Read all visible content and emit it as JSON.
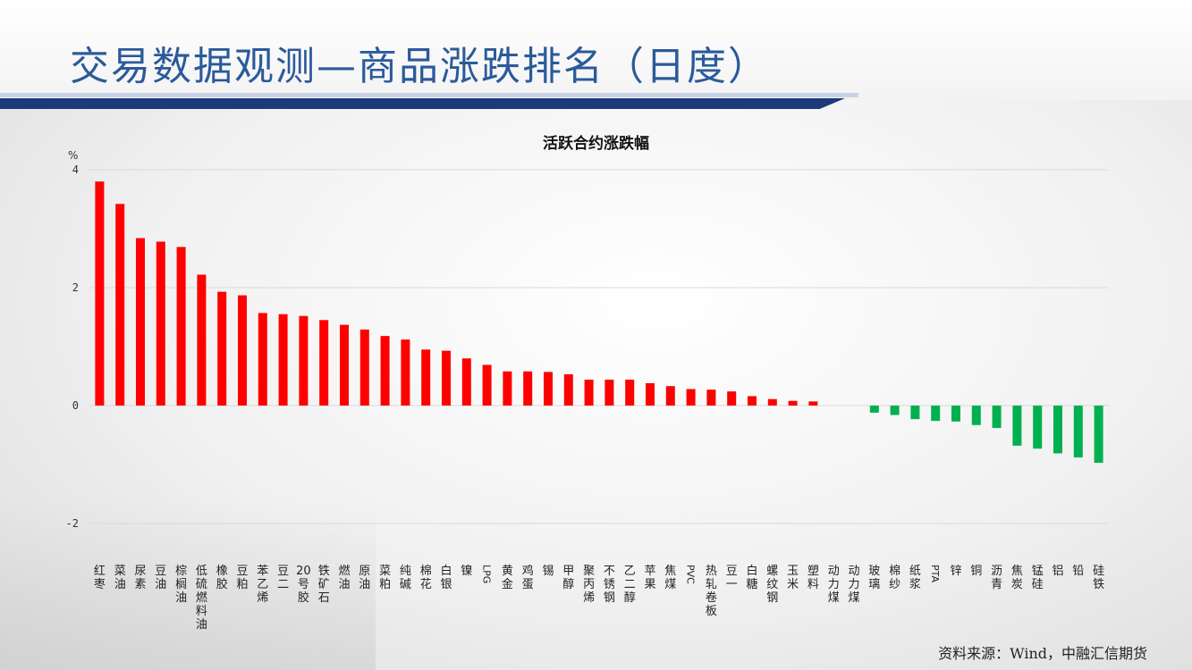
{
  "header": {
    "title": "交易数据观测—商品涨跌排名（日度）"
  },
  "footer": {
    "source": "资料来源：Wind，中融汇信期货"
  },
  "colors": {
    "up": "#ff0000",
    "down": "#00b050",
    "title": "#2a5a9a",
    "band": "#1a3a7a"
  },
  "chart_data": {
    "type": "bar",
    "title": "活跃合约涨跌幅",
    "ylabel": "%",
    "ylim": [
      -2,
      4
    ],
    "yticks": [
      -2,
      0,
      2,
      4
    ],
    "grid": true,
    "categories": [
      "红枣",
      "菜油",
      "尿素",
      "豆油",
      "棕榈油",
      "低硫燃料油",
      "橡胶",
      "豆粕",
      "苯乙烯",
      "豆二",
      "20号胶",
      "铁矿石",
      "燃油",
      "原油",
      "菜粕",
      "纯碱",
      "棉花",
      "白银",
      "镍",
      "LPG",
      "黄金",
      "鸡蛋",
      "锡",
      "甲醇",
      "聚丙烯",
      "不锈钢",
      "乙二醇",
      "苹果",
      "焦煤",
      "PVC",
      "热轧卷板",
      "豆一",
      "白糖",
      "螺纹钢",
      "玉米",
      "塑料",
      "动力煤",
      "动力煤",
      "玻璃",
      "棉纱",
      "纸浆",
      "PTA",
      "锌",
      "铜",
      "沥青",
      "焦炭",
      "锰硅",
      "铝",
      "铅",
      "硅铁"
    ],
    "values": [
      3.8,
      3.42,
      2.84,
      2.78,
      2.69,
      2.22,
      1.93,
      1.87,
      1.57,
      1.55,
      1.52,
      1.45,
      1.37,
      1.29,
      1.18,
      1.12,
      0.95,
      0.93,
      0.8,
      0.69,
      0.58,
      0.58,
      0.57,
      0.53,
      0.44,
      0.44,
      0.44,
      0.38,
      0.33,
      0.28,
      0.27,
      0.24,
      0.16,
      0.11,
      0.08,
      0.07,
      0.0,
      0.0,
      -0.12,
      -0.16,
      -0.23,
      -0.26,
      -0.27,
      -0.33,
      -0.38,
      -0.68,
      -0.73,
      -0.81,
      -0.88,
      -0.97
    ]
  }
}
